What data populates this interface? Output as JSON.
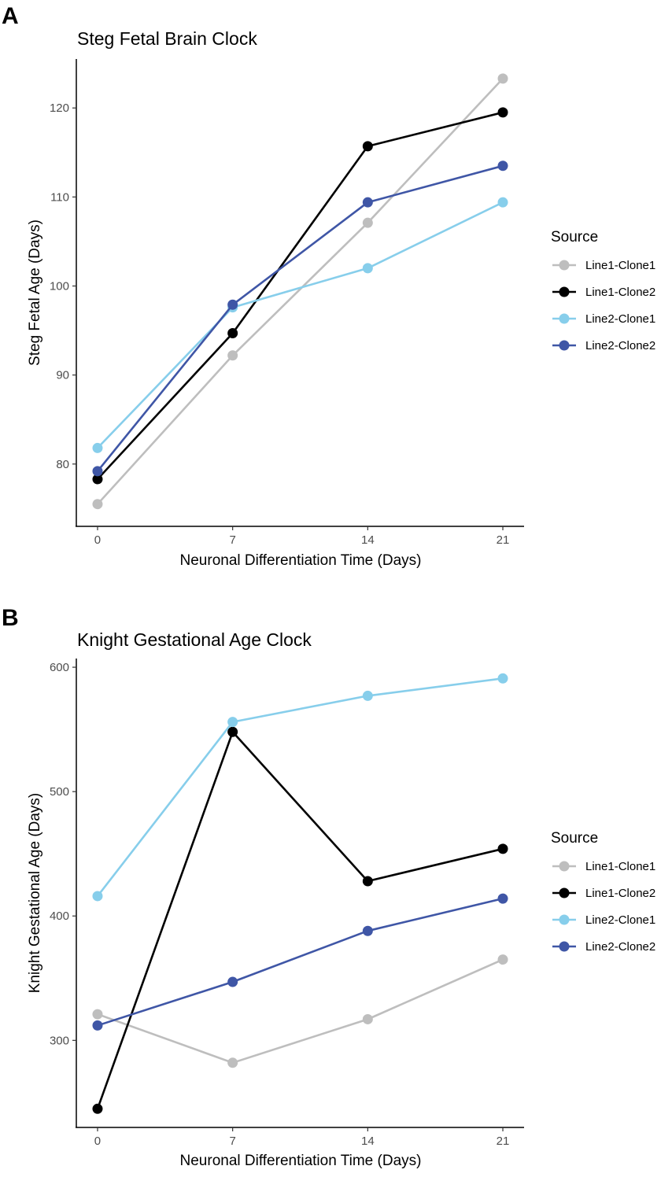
{
  "colors": {
    "Line1-Clone1": "#bebebe",
    "Line1-Clone2": "#000000",
    "Line2-Clone1": "#87ceeb",
    "Line2-Clone2": "#3f56a6"
  },
  "chart_data": [
    {
      "panel": "A",
      "type": "line",
      "title": "Steg Fetal Brain Clock",
      "xlabel": "Neuronal Differentiation Time (Days)",
      "ylabel": "Steg Fetal Age (Days)",
      "x": [
        0,
        7,
        14,
        21
      ],
      "x_ticks": [
        "0",
        "7",
        "14",
        "21"
      ],
      "xlim": [
        -1.1,
        22.1
      ],
      "ylim": [
        73.0,
        125.5
      ],
      "y_ticks": [
        80,
        90,
        100,
        110,
        120
      ],
      "legend_title": "Source",
      "legend_position": "right",
      "series": [
        {
          "name": "Line1-Clone1",
          "values": [
            75.5,
            92.2,
            107.1,
            123.3
          ]
        },
        {
          "name": "Line1-Clone2",
          "values": [
            78.3,
            94.7,
            115.7,
            119.5
          ]
        },
        {
          "name": "Line2-Clone1",
          "values": [
            81.8,
            97.6,
            102.0,
            109.4
          ]
        },
        {
          "name": "Line2-Clone2",
          "values": [
            79.2,
            97.9,
            109.4,
            113.5
          ]
        }
      ]
    },
    {
      "panel": "B",
      "type": "line",
      "title": "Knight Gestational Age Clock",
      "xlabel": "Neuronal Differentiation Time (Days)",
      "ylabel": "Knight Gestational Age (Days)",
      "x": [
        0,
        7,
        14,
        21
      ],
      "x_ticks": [
        "0",
        "7",
        "14",
        "21"
      ],
      "xlim": [
        -1.1,
        22.1
      ],
      "ylim": [
        230,
        607
      ],
      "y_ticks": [
        300,
        400,
        500,
        600
      ],
      "legend_title": "Source",
      "legend_position": "right",
      "series": [
        {
          "name": "Line1-Clone1",
          "values": [
            321,
            282,
            317,
            365
          ]
        },
        {
          "name": "Line1-Clone2",
          "values": [
            245,
            548,
            428,
            454
          ]
        },
        {
          "name": "Line2-Clone1",
          "values": [
            416,
            556,
            577,
            591
          ]
        },
        {
          "name": "Line2-Clone2",
          "values": [
            312,
            347,
            388,
            414
          ]
        }
      ]
    }
  ]
}
